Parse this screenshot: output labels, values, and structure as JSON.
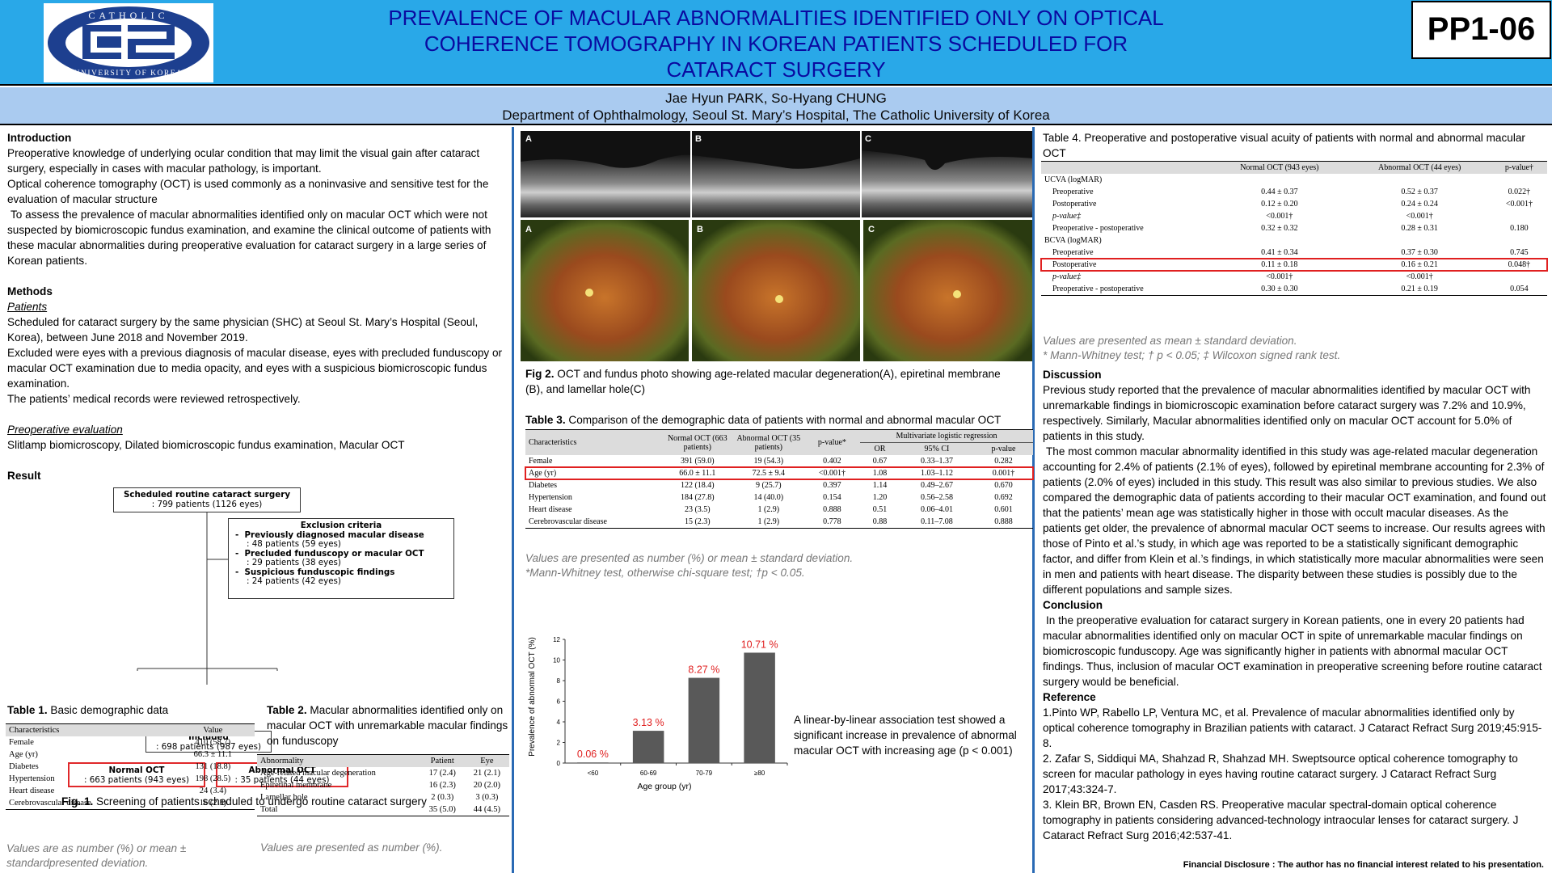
{
  "header": {
    "code": "PP1-06",
    "title_lines": [
      "PREVALENCE OF MACULAR ABNORMALITIES IDENTIFIED ONLY ON OPTICAL",
      "COHERENCE TOMOGRAPHY IN KOREAN PATIENTS SCHEDULED FOR",
      "CATARACT SURGERY"
    ],
    "authors": "Jae Hyun PARK, So-Hyang CHUNG",
    "affiliation": "Department of Ophthalmology, Seoul St. Mary’s Hospital, The Catholic University of Korea",
    "logo_top_text": "CATHOLIC",
    "logo_bottom_text": "UNIVERSITY OF KOREA"
  },
  "intro": {
    "heading": "Introduction",
    "paragraphs": [
      "Preoperative knowledge of underlying ocular condition  that may limit the visual gain after cataract surgery, especially in cases with macular pathology, is important.",
      "Optical coherence tomography (OCT) is used commonly as a noninvasive and sensitive test for the evaluation of macular structure",
      "To assess the prevalence of macular abnormalities identified only on macular OCT which were not suspected by biomicroscopic fundus examination, and examine the clinical outcome of patients with these macular abnormalities during preoperative evaluation for cataract surgery in a large series of Korean patients."
    ]
  },
  "methods": {
    "heading": "Methods",
    "patients_heading": "Patients",
    "patients": [
      "Scheduled for cataract surgery by the same physician (SHC) at Seoul St. Mary’s Hospital (Seoul, Korea), between June 2018 and November 2019.",
      "Excluded were eyes with a previous diagnosis of macular disease, eyes with precluded funduscopy or macular OCT examination due to media opacity, and eyes with a suspicious biomicroscopic fundus examination.",
      "The patients’ medical records were reviewed retrospectively."
    ],
    "preop_heading": "Preoperative evaluation",
    "preop": "Slitlamp biomicroscopy,  Dilated biomicroscopic fundus examination, Macular OCT"
  },
  "result_heading": "Result",
  "flow": {
    "top": [
      "Scheduled routine cataract surgery",
      ": 799 patients (1126 eyes)"
    ],
    "excl_title": "Exclusion criteria",
    "excl": [
      [
        "Previously diagnosed macular disease",
        ": 48 patients (59 eyes)"
      ],
      [
        "Precluded funduscopy or macular OCT",
        ": 29 patients (38 eyes)"
      ],
      [
        "Suspicious funduscopic findings",
        ": 24 patients (42 eyes)"
      ]
    ],
    "included": [
      "Included",
      ": 698 patients (987 eyes)"
    ],
    "normal": [
      "Normal OCT",
      ": 663 patients (943 eyes)"
    ],
    "abnormal": [
      "Abnormal OCT",
      ": 35 patients (44 eyes)"
    ],
    "caption_bold": "Fig. 1.",
    "caption": " Screening of patients scheduled to undergo routine cataract surgery"
  },
  "table1": {
    "caption_bold": "Table 1.",
    "caption": " Basic demographic data",
    "headers": [
      "Characteristics",
      "Value"
    ],
    "rows": [
      [
        "Female",
        "410 (58.7)"
      ],
      [
        "Age (yr)",
        "66.3 ± 11.1"
      ],
      [
        "Diabetes",
        "131 (18.8)"
      ],
      [
        "Hypertension",
        "198 (28.5)"
      ],
      [
        "Heart disease",
        "24 (3.4)"
      ],
      [
        "Cerebrovascular disease",
        "16 (2.3)"
      ]
    ],
    "note": "Values are as number (%) or mean  ± standardpresented deviation."
  },
  "table2": {
    "caption_bold": "Table 2.",
    "caption": "  Macular abnormalities identified only on macular OCT with unremarkable macular findings on funduscopy",
    "headers": [
      "Abnormality",
      "Patient",
      "Eye"
    ],
    "rows": [
      [
        "Age-related macular degeneration",
        "17 (2.4)",
        "21 (2.1)"
      ],
      [
        "Epiretinal membrane",
        "16 (2.3)",
        "20 (2.0)"
      ],
      [
        "Lamellar hole",
        "2 (0.3)",
        "3 (0.3)"
      ],
      [
        "Total",
        "35 (5.0)",
        "44 (4.5)"
      ]
    ],
    "note": "Values are presented as number (%)."
  },
  "fig2": {
    "labels": [
      "A",
      "B",
      "C"
    ],
    "caption_bold": "Fig 2.",
    "caption": "  OCT and fundus photo showing age-related macular degeneration(A), epiretinal membrane (B), and lamellar hole(C)"
  },
  "table3": {
    "caption_bold": "Table 3.",
    "caption": " Comparison of the demographic data of patients with normal and abnormal macular OCT",
    "headers": [
      "Characteristics",
      "Normal OCT (663 patients)",
      "Abnormal OCT (35 patients)",
      "p-value*",
      "Multivariate logistic regression"
    ],
    "subheaders": [
      "OR",
      "95% CI",
      "p-value"
    ],
    "rows": [
      [
        "Female",
        "391 (59.0)",
        "19 (54.3)",
        "0.402",
        "0.67",
        "0.33–1.37",
        "0.282"
      ],
      [
        "Age (yr)",
        "66.0 ± 11.1",
        "72.5 ± 9.4",
        "<0.001†",
        "1.08",
        "1.03–1.12",
        "0.001†"
      ],
      [
        "Diabetes",
        "122 (18.4)",
        "9 (25.7)",
        "0.397",
        "1.14",
        "0.49–2.67",
        "0.670"
      ],
      [
        "Hypertension",
        "184 (27.8)",
        "14 (40.0)",
        "0.154",
        "1.20",
        "0.56–2.58",
        "0.692"
      ],
      [
        "Heart disease",
        "23 (3.5)",
        "1 (2.9)",
        "0.888",
        "0.51",
        "0.06–4.01",
        "0.601"
      ],
      [
        "Cerebrovascular disease",
        "15 (2.3)",
        "1 (2.9)",
        "0.778",
        "0.88",
        "0.11–7.08",
        "0.888"
      ]
    ],
    "notes": [
      "Values are presented as number (%) or mean  ± standard deviation.",
      "*Mann-Whitney test, otherwise chi-square test; †p < 0.05."
    ]
  },
  "chart_data": {
    "type": "bar",
    "categories": [
      "<60",
      "60-69",
      "70-79",
      "≥80"
    ],
    "values": [
      0.06,
      3.13,
      8.27,
      10.71
    ],
    "data_labels": [
      "0.06 %",
      "3.13 %",
      "8.27 %",
      "10.71 %"
    ],
    "xlabel": "Age group (yr)",
    "ylabel": "Prevalence of abnormal OCT (%)",
    "ylim": [
      0,
      12
    ],
    "yticks": [
      "0",
      "2",
      "4",
      "6",
      "8",
      "10",
      "12"
    ],
    "bar_color": "#595959",
    "label_color": "#e02020",
    "grid": false
  },
  "chart_note": "A linear-by-linear association test showed a significant increase in prevalence of abnormal macular OCT with increasing age (p < 0.001)",
  "table4": {
    "caption": "Table 4. Preoperative and postoperative visual acuity of patients with normal and abnormal macular OCT",
    "headers": [
      "",
      "Normal OCT (943 eyes)",
      "Abnormal OCT (44 eyes)",
      "p-value†"
    ],
    "rows": [
      [
        "UCVA (logMAR)",
        "",
        "",
        ""
      ],
      [
        "Preoperative",
        "0.44 ± 0.37",
        "0.52 ± 0.37",
        "0.022†"
      ],
      [
        "Postoperative",
        "0.12 ± 0.20",
        "0.24 ± 0.24",
        "<0.001†"
      ],
      [
        "p-value‡",
        "<0.001†",
        "<0.001†",
        ""
      ],
      [
        "Preoperative - postoperative",
        "0.32 ± 0.32",
        "0.28 ± 0.31",
        "0.180"
      ],
      [
        "BCVA (logMAR)",
        "",
        "",
        ""
      ],
      [
        "Preoperative",
        "0.41 ± 0.34",
        "0.37 ± 0.30",
        "0.745"
      ],
      [
        "Postoperative",
        "0.11 ± 0.18",
        "0.16 ± 0.21",
        "0.048†"
      ],
      [
        "p-value‡",
        "<0.001†",
        "<0.001†",
        ""
      ],
      [
        "Preoperative - postoperative",
        "0.30 ± 0.30",
        "0.21 ± 0.19",
        "0.054"
      ]
    ],
    "notes": [
      "Values are presented as mean  ± standard deviation.",
      "* Mann-Whitney test; † p < 0.05; ‡ Wilcoxon signed rank test."
    ]
  },
  "discussion": {
    "heading": "Discussion",
    "paragraphs": [
      "Previous study reported that the prevalence of macular abnormalities identified by macular OCT with unremarkable findings in biomicroscopic examination before cataract surgery was 7.2% and 10.9%, respectively. Similarly, Macular abnormalities identified only on macular OCT account for 5.0% of patients in this study.",
      "The most common macular abnormality identified in this study was age-related macular degeneration accounting for 2.4% of patients (2.1% of eyes), followed by epiretinal membrane accounting for 2.3% of patients (2.0% of eyes) included in this study. This result was also similar to previous studies. We also compared the demographic data of patients according to their macular OCT examination, and found out that the patients’ mean age was statistically higher in those with occult macular diseases. As the patients get older, the prevalence of abnormal macular OCT seems to increase. Our results agrees with those of Pinto et al.’s study, in which age was reported to be a statistically significant demographic factor, and differ from Klein et al.’s findings, in which statistically more macular abnormalities were seen in men and patients with heart disease. The disparity between these studies is possibly due to the different populations and sample sizes."
    ]
  },
  "conclusion": {
    "heading": "Conclusion",
    "text": "In the preoperative evaluation for cataract surgery in Korean patients, one in every 20 patients had macular abnormalities identified only on macular OCT in spite of unremarkable macular findings on biomicroscopic funduscopy. Age was significantly higher in patients with abnormal macular OCT findings. Thus, inclusion of macular OCT examination in preoperative screening before routine cataract surgery would be beneficial."
  },
  "references": {
    "heading": "Reference",
    "items": [
      "1.Pinto WP, Rabello LP, Ventura MC, et al. Prevalence of macular abnormalities identified only by optical coherence tomography in Brazilian patients with cataract. J Cataract Refract Surg 2019;45:915-8.",
      "2.  Zafar S, Siddiqui MA, Shahzad R, Shahzad MH. Sweptsource optical coherence tomography to screen for macular pathology in eyes having routine cataract surgery. J Cataract Refract Surg 2017;43:324-7.",
      "3. Klein BR, Brown EN, Casden RS. Preoperative macular spectral-domain optical coherence tomography in patients considering advanced-technology intraocular lenses for cataract surgery. J Cataract Refract Surg 2016;42:537-41."
    ]
  },
  "disclosure": "Financial Disclosure : The author has no financial interest related to his presentation.",
  "colors": {
    "header_bg": "#29a8e8",
    "author_bg": "#aacbf0",
    "title_color": "#0a0aa0",
    "divider": "#2a6ab4",
    "highlight": "#e02020"
  }
}
